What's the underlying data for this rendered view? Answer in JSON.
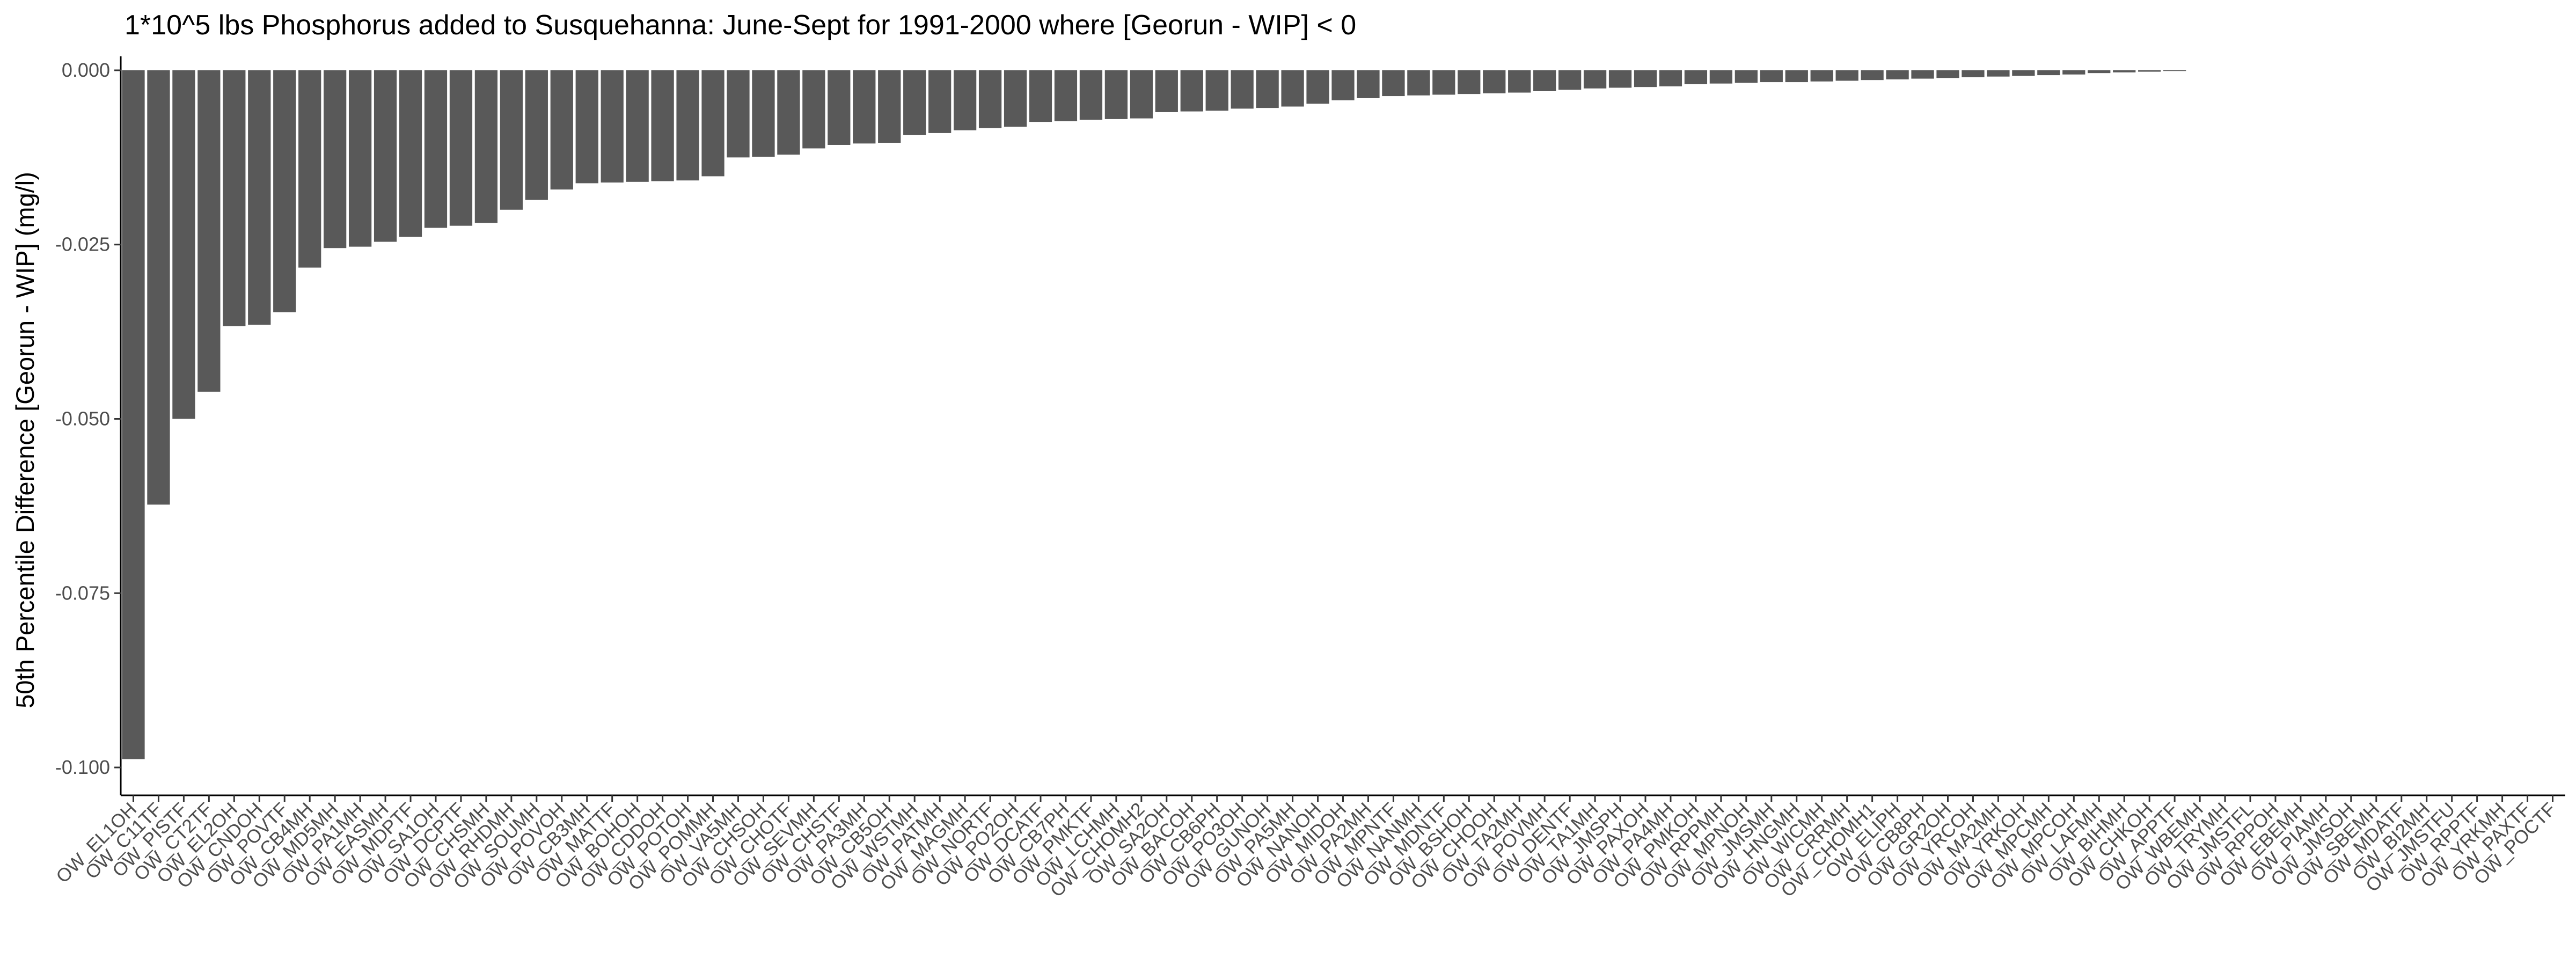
{
  "chart_data": {
    "type": "bar",
    "title": "1*10^5 lbs Phosphorus added to Susquehanna: June-Sept for 1991-2000 where [Georun - WIP] < 0",
    "xlabel": "",
    "ylabel": "50th Percentile Difference [Georun - WIP] (mg/l)",
    "ylim": [
      -0.104,
      0.002
    ],
    "yticks": [
      0.0,
      -0.025,
      -0.05,
      -0.075,
      -0.1
    ],
    "ytick_labels": [
      "0.000",
      "-0.025",
      "-0.050",
      "-0.075",
      "-0.100"
    ],
    "grid": false,
    "bar_color": "#595959",
    "categories": [
      "OW_EL1OH",
      "OW_C11TF",
      "OW_PISTF",
      "OW_CT2TF",
      "OW_EL2OH",
      "OW_CNDOH",
      "OW_POVTF",
      "OW_CB4MH",
      "OW_MD5MH",
      "OW_PA1MH",
      "OW_EASMH",
      "OW_MDPTF",
      "OW_SA1OH",
      "OW_DCPTF",
      "OW_CHSMH",
      "OW_RHDMH",
      "OW_SOUMH",
      "OW_POVOH",
      "OW_CB3MH",
      "OW_MATTF",
      "OW_BOHOH",
      "OW_CDDOH",
      "OW_POTOH",
      "OW_POMMH",
      "OW_VA5MH",
      "OW_CHSOH",
      "OW_CHOTF",
      "OW_SEVMH",
      "OW_CHSTF",
      "OW_PA3MH",
      "OW_CB5OH",
      "OW_WSTMH",
      "OW_PATMH",
      "OW_MAGMH",
      "OW_NORTF",
      "OW_PO2OH",
      "OW_DCATF",
      "OW_CB7PH",
      "OW_PMKTF",
      "OW_LCHMH",
      "OW_CHOMH2",
      "OW_SA2OH",
      "OW_BACOH",
      "OW_CB6PH",
      "OW_PO3OH",
      "OW_GUNOH",
      "OW_PA5MH",
      "OW_NANOH",
      "OW_MIDOH",
      "OW_PA2MH",
      "OW_MPNTF",
      "OW_NANMH",
      "OW_MDNTF",
      "OW_BSHOH",
      "OW_CHOOH",
      "OW_TA2MH",
      "OW_POVMH",
      "OW_DENTF",
      "OW_TA1MH",
      "OW_JMSPH",
      "OW_PAXOH",
      "OW_PA4MH",
      "OW_PMKOH",
      "OW_RPPMH",
      "OW_MPNOH",
      "OW_JMSMH",
      "OW_HNGMH",
      "OW_WICMH",
      "OW_CRRMH",
      "OW_CHOMH1",
      "OW_ELIPH",
      "OW_CB8PH",
      "OW_GR2OH",
      "OW_YRCOH",
      "OW_MA2MH",
      "OW_YRKOH",
      "OW_MPCMH",
      "OW_MPCOH",
      "OW_LAFMH",
      "OW_BIHMH",
      "OW_CHKOH",
      "OW_APPTF",
      "OW_WBEMH",
      "OW_TRYMH",
      "OW_JMSTFL",
      "OW_RPPOH",
      "OW_EBEMH",
      "OW_PIAMH",
      "OW_JMSOH",
      "OW_SBEMH",
      "OW_MDATF",
      "OW_BI2MH",
      "OW_JMSTFU",
      "OW_RPPTF",
      "OW_YRKMH",
      "OW_PAXTF",
      "OW_POCTF"
    ],
    "values": [
      -0.0988,
      -0.0623,
      -0.05,
      -0.0461,
      -0.0367,
      -0.0365,
      -0.0347,
      -0.0283,
      -0.0255,
      -0.0253,
      -0.0246,
      -0.0239,
      -0.0226,
      -0.0223,
      -0.0219,
      -0.02,
      -0.0186,
      -0.0171,
      -0.0162,
      -0.0161,
      -0.016,
      -0.0159,
      -0.0158,
      -0.0152,
      -0.0125,
      -0.0124,
      -0.0121,
      -0.0112,
      -0.0107,
      -0.0105,
      -0.0104,
      -0.0093,
      -0.009,
      -0.0086,
      -0.0083,
      -0.0081,
      -0.0074,
      -0.0073,
      -0.0071,
      -0.007,
      -0.0069,
      -0.006,
      -0.0059,
      -0.0058,
      -0.0055,
      -0.0054,
      -0.0052,
      -0.0048,
      -0.0043,
      -0.004,
      -0.0037,
      -0.0036,
      -0.0035,
      -0.0034,
      -0.0033,
      -0.0032,
      -0.003,
      -0.0028,
      -0.0026,
      -0.0025,
      -0.0024,
      -0.0023,
      -0.002,
      -0.0019,
      -0.0018,
      -0.0017,
      -0.0017,
      -0.0016,
      -0.0015,
      -0.0014,
      -0.0013,
      -0.0012,
      -0.0011,
      -0.001,
      -0.0009,
      -0.0008,
      -0.0007,
      -0.0006,
      -0.0004,
      -0.0003,
      -0.0002,
      -0.0001,
      0.0,
      0.0,
      0.0,
      0.0,
      0.0,
      0.0,
      0.0,
      0.0,
      0.0,
      0.0,
      0.0,
      0.0,
      0.0,
      0.0,
      0.0
    ]
  }
}
